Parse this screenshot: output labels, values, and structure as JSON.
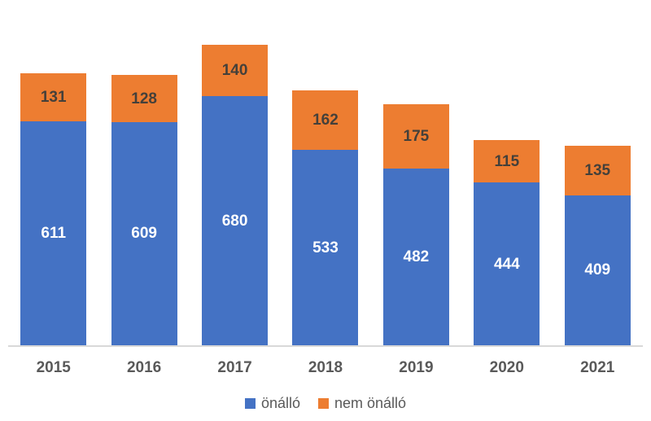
{
  "chart_data": {
    "type": "bar",
    "stacked": true,
    "categories": [
      "2015",
      "2016",
      "2017",
      "2018",
      "2019",
      "2020",
      "2021"
    ],
    "series": [
      {
        "name": "önálló",
        "values": [
          611,
          609,
          680,
          533,
          482,
          444,
          409
        ],
        "color": "#4472C4",
        "label_color": "#FFFFFF"
      },
      {
        "name": "nem önálló",
        "values": [
          131,
          128,
          140,
          162,
          175,
          115,
          135
        ],
        "color": "#ED7D31",
        "label_color": "#44403A"
      }
    ],
    "ylim": [
      0,
      900
    ],
    "grid": false,
    "legend_position": "bottom",
    "background": "#FFFFFF",
    "axis_line_color": "#D9D9D9",
    "axis_label_color": "#595959",
    "legend_text_color": "#595959"
  }
}
